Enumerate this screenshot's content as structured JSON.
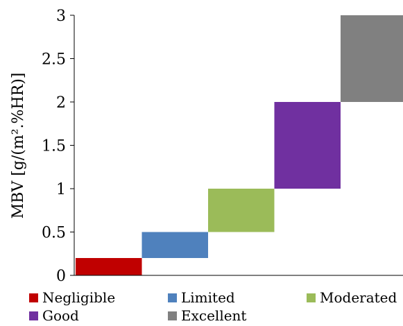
{
  "chart_data": {
    "type": "bar",
    "subtype": "floating-range",
    "ylabel": "MBV [g/(m².%HR)]",
    "ylim": [
      0,
      3
    ],
    "y_ticks": [
      "0",
      "0.5",
      "1",
      "1.5",
      "2",
      "2.5",
      "3"
    ],
    "grid": false,
    "legend_position": "bottom",
    "series": [
      {
        "name": "Negligible",
        "range": [
          0,
          0.2
        ],
        "color": "#C00000"
      },
      {
        "name": "Limited",
        "range": [
          0.2,
          0.5
        ],
        "color": "#4F81BD"
      },
      {
        "name": "Moderated",
        "range": [
          0.5,
          1.0
        ],
        "color": "#9BBB59"
      },
      {
        "name": "Good",
        "range": [
          1.0,
          2.0
        ],
        "color": "#7030A0"
      },
      {
        "name": "Excellent",
        "range": [
          2.0,
          3.0
        ],
        "color": "#808080"
      }
    ]
  }
}
